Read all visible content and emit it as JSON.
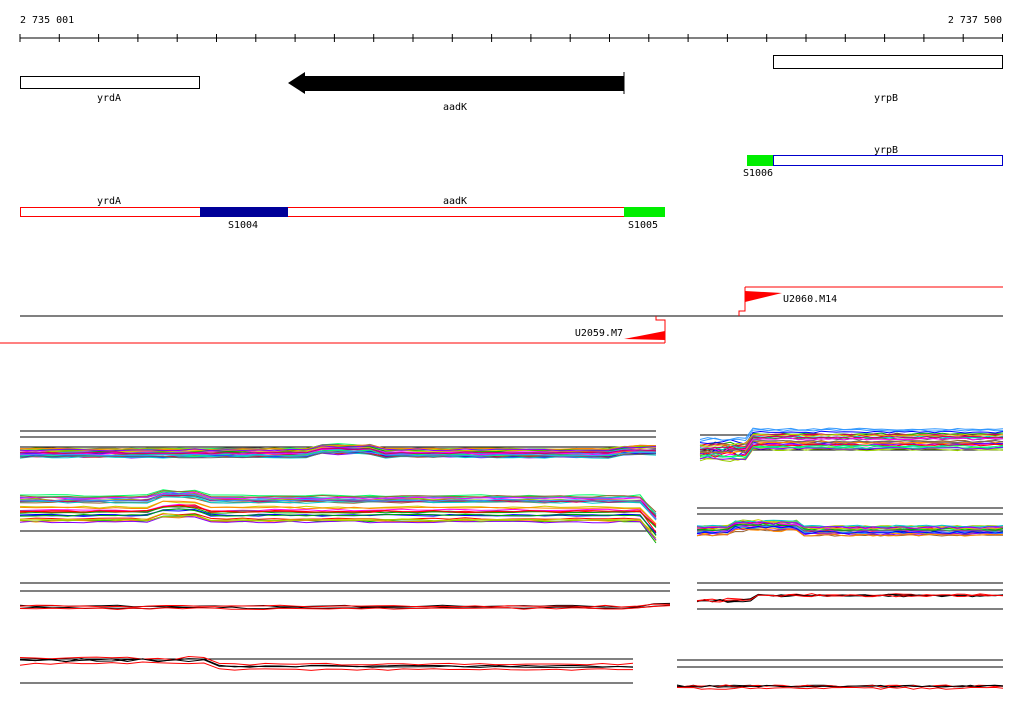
{
  "ruler": {
    "start": "2 735 001",
    "end": "2 737 500"
  },
  "genes": {
    "yrdA": "yrdA",
    "aadK": "aadK",
    "yrpB": "yrpB"
  },
  "transcript_track": {
    "yrdA": "yrdA",
    "aadK": "aadK",
    "yrpB": "yrpB",
    "segments": {
      "S1004": "S1004",
      "S1005": "S1005",
      "S1006": "S1006"
    }
  },
  "promoters": {
    "left": "U2059.M7",
    "right": "U2060.M14"
  },
  "colors": {
    "gene_fill": "#000000",
    "transcript_outline": "#ff0000",
    "transcript_outline_blue": "#0000cc",
    "segment_dark": "#000099",
    "segment_green": "#00ee00",
    "promoter": "#ff0000",
    "trace_colors": [
      "#ff0000",
      "#00aa00",
      "#0000ff",
      "#ff00ff",
      "#00cccc",
      "#cccc00",
      "#ff8800",
      "#8800ff",
      "#00ff66",
      "#666666",
      "#cc0066",
      "#3399ff",
      "#996633",
      "#99cc00"
    ]
  }
}
